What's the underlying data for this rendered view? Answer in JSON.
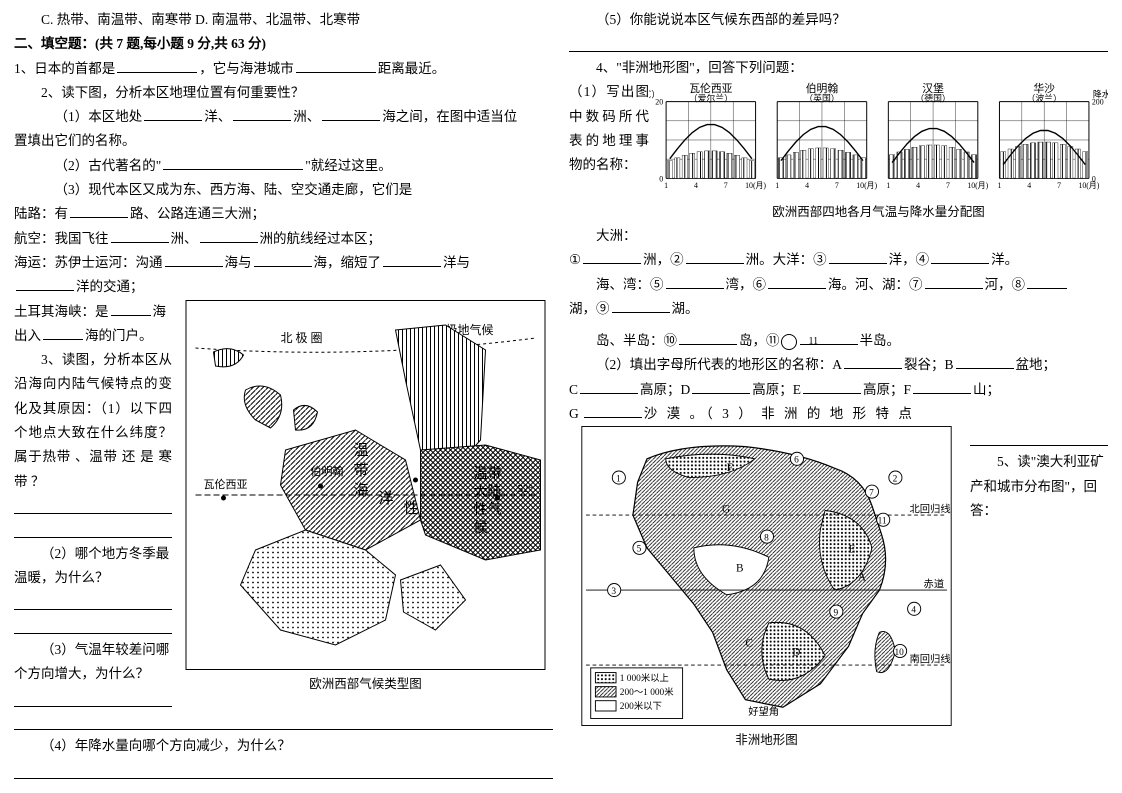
{
  "left": {
    "options_cd": "C.  热带、南温带、南寒带         D.  南温带、北温带、北寒带",
    "section2_title": "二、填空题：(共 7 题,每小题 9 分,共 63 分)",
    "q1": {
      "lead": "1、日本的首都是",
      "mid": "，它与海港城市",
      "tail": "距离最近。"
    },
    "q2": {
      "prompt": "2、读下图，分析本区地理位置有何重要性？",
      "p1a": "（1）本区地处",
      "p1b": "洋、",
      "p1c": "洲、",
      "p1d": "海之间，在图中适当位",
      "p1e": "置填出它们的名称。",
      "p2a": "（2）古代著名的\"",
      "p2b": "\"就经过这里。",
      "p3a": "（3）现代本区又成为东、西方海、陆、空交通走廊，它们是",
      "land_a": "陆路：有",
      "land_b": "路、公路连通三大洲；",
      "air_a": "航空：我国飞往",
      "air_b": "洲、",
      "air_c": "洲的航线经过本区；",
      "sea_a": "海运：苏伊士运河：沟通",
      "sea_b": "海与",
      "sea_c": "海，缩短了",
      "sea_d": "洋与",
      "sea_e": "洋的交通；",
      "strait_a": "土耳其海峡：是",
      "strait_b": "海",
      "strait_c": "出入",
      "strait_d": "海的门户。"
    },
    "q3": {
      "prompt": "3、读图，分析本区从沿海向内陆气候特点的变化及其原因：（1）以下四个地点大致在什么纬度？属于热带 、温带 还 是 寒 带 ？",
      "p2": "（2）哪个地方冬季最温暖，为什么？",
      "p3": "（3）气温年较差问哪个方向增大，为什么？",
      "p4": "（4）年降水量向哪个方向减少，为什么？"
    },
    "map_europe": {
      "caption": "欧洲西部气候类型图",
      "labels": {
        "arctic": "北 极 圈",
        "polar": "极 地 气 候",
        "temperate": "温 带 海 洋",
        "continental": "大 陆 性 气 候",
        "valensiya": "瓦伦西亚",
        "birmingham": "伯明翰",
        "lat52": "52°",
        "xing": "性"
      }
    }
  },
  "right": {
    "q5_cont": {
      "p5": "（5）你能说说本区气候东西部的差异吗？"
    },
    "q4": {
      "prompt": "4、\"非洲地形图\"，回答下列问题：",
      "p1a": "（1）写出图中数码所代表的地理事物的名称：",
      "continent": "大洲：",
      "chart_caption": "欧洲西部四地各月气温与降水量分配图",
      "charts": [
        {
          "city": "瓦伦西亚",
          "sub": "（爱尔兰）",
          "ylabel_l": "气温（℃）",
          "y_l": [
            0,
            20
          ],
          "y_r": null
        },
        {
          "city": "伯明翰",
          "sub": "（英国）",
          "y_l": null
        },
        {
          "city": "汉堡",
          "sub": "（德国）",
          "y_l": null
        },
        {
          "city": "华沙",
          "sub": "（波兰）",
          "ylabel_r": "降水量（mm）",
          "y_r": [
            0,
            200
          ]
        }
      ],
      "line2": {
        "a": "洲，②",
        "b": "洲。大洋：③",
        "c": "洋，④",
        "d": "洋。"
      },
      "line3": {
        "a": "海、湾：⑤",
        "b": "湾，⑥",
        "c": "海。河、湖：⑦",
        "d": "河，⑧"
      },
      "line4": {
        "a": "湖，⑨",
        "b": "湖。"
      },
      "line5": {
        "a": "岛、半岛：⑩",
        "b": "岛，⑪",
        "c": "半岛。"
      },
      "p2": {
        "lead": "（2）填出字母所代表的地形区的名称：A",
        "a": "裂谷；B",
        "b": "盆地；",
        "c_lead": "C",
        "c": "高原；D",
        "d": "高原；E",
        "e": "高原；F",
        "f": "山；",
        "g_lead": "G",
        "g": "沙 漠 。（ 3 ） 非 洲 的 地 形 特 点"
      }
    },
    "q5": {
      "prompt": "5、读\"澳大利亚矿产和城市分布图\"，回答："
    },
    "map_africa": {
      "caption": "非洲地形图",
      "legend": {
        "hi": "1 000米以上",
        "mid": "200～1 000米",
        "lo": "200米以下"
      },
      "labels": {
        "tropic_n": "北回归线",
        "equator": "赤道",
        "tropic_s": "南回归线",
        "cape": "好望角"
      }
    }
  }
}
